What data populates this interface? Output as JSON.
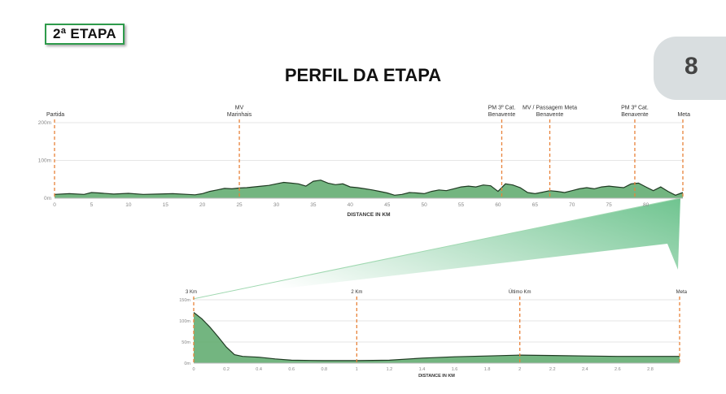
{
  "badge": "2ª ETAPA",
  "page_number": "8",
  "title": "PERFIL DA ETAPA",
  "colors": {
    "fill": "#5aa86a",
    "line": "#1f3a22",
    "marker": "#e8823a",
    "badge_border": "#2e9b4b"
  },
  "chart_data": [
    {
      "type": "area",
      "xlabel": "DISTANCE IN KM",
      "ylabel": "",
      "xlim": [
        0,
        85
      ],
      "ylim": [
        0,
        200
      ],
      "xticks": [
        0,
        5,
        10,
        15,
        20,
        25,
        30,
        35,
        40,
        45,
        50,
        55,
        60,
        65,
        70,
        75,
        80
      ],
      "yticks": [
        {
          "v": 0,
          "label": "0m"
        },
        {
          "v": 100,
          "label": "100m"
        },
        {
          "v": 200,
          "label": "200m"
        }
      ],
      "grid": true,
      "markers": [
        {
          "km": 0,
          "lines": [
            "Partida"
          ]
        },
        {
          "km": 25,
          "lines": [
            "MV",
            "Marinhais"
          ]
        },
        {
          "km": 60.5,
          "lines": [
            "PM 3º Cat.",
            "Benavente"
          ]
        },
        {
          "km": 67,
          "lines": [
            "MV / Passagem Meta",
            "Benavente"
          ]
        },
        {
          "km": 78.5,
          "lines": [
            "PM 3º Cat.",
            "Benavente"
          ]
        },
        {
          "km": 85,
          "lines": [
            "Meta"
          ]
        }
      ],
      "x": [
        0,
        2,
        4,
        5,
        6,
        8,
        10,
        12,
        14,
        16,
        18,
        19,
        20,
        21,
        22,
        23,
        24,
        25,
        26,
        28,
        29,
        30,
        31,
        32,
        33,
        34,
        35,
        36,
        37,
        38,
        39,
        40,
        41,
        42,
        43,
        44,
        45,
        46,
        47,
        48,
        49,
        50,
        51,
        52,
        53,
        54,
        55,
        56,
        57,
        58,
        59,
        60,
        61,
        62,
        63,
        64,
        65,
        66,
        67,
        68,
        69,
        70,
        71,
        72,
        73,
        74,
        75,
        76,
        77,
        78,
        79,
        80,
        81,
        82,
        83,
        84,
        85
      ],
      "y": [
        10,
        12,
        10,
        15,
        14,
        11,
        13,
        10,
        11,
        12,
        10,
        9,
        12,
        18,
        22,
        26,
        25,
        27,
        28,
        32,
        34,
        38,
        42,
        40,
        38,
        32,
        45,
        48,
        40,
        36,
        38,
        30,
        28,
        25,
        22,
        18,
        14,
        8,
        10,
        15,
        14,
        12,
        18,
        22,
        20,
        25,
        30,
        32,
        30,
        35,
        33,
        18,
        38,
        35,
        28,
        15,
        12,
        16,
        20,
        18,
        15,
        20,
        25,
        28,
        25,
        30,
        32,
        30,
        28,
        38,
        40,
        30,
        20,
        30,
        18,
        8,
        15
      ]
    },
    {
      "type": "area",
      "xlabel": "DISTANCE IN KM",
      "ylabel": "",
      "xlim": [
        0,
        2.98
      ],
      "ylim": [
        0,
        150
      ],
      "xticks": [
        0,
        0.2,
        0.4,
        0.6,
        0.8,
        1,
        1.2,
        1.4,
        1.6,
        1.8,
        2,
        2.2,
        2.4,
        2.6,
        2.8
      ],
      "yticks": [
        {
          "v": 0,
          "label": "0m"
        },
        {
          "v": 50,
          "label": "50m"
        },
        {
          "v": 100,
          "label": "100m"
        },
        {
          "v": 150,
          "label": "150m"
        }
      ],
      "grid": true,
      "markers": [
        {
          "km": 0,
          "lines": [
            "3 Km"
          ]
        },
        {
          "km": 1,
          "lines": [
            "2 Km"
          ]
        },
        {
          "km": 2,
          "lines": [
            "Último Km"
          ]
        },
        {
          "km": 2.98,
          "lines": [
            "Meta"
          ]
        }
      ],
      "x": [
        0,
        0.05,
        0.1,
        0.15,
        0.2,
        0.25,
        0.3,
        0.4,
        0.5,
        0.6,
        0.8,
        1.0,
        1.2,
        1.4,
        1.6,
        1.8,
        2.0,
        2.2,
        2.4,
        2.6,
        2.8,
        2.98
      ],
      "y": [
        120,
        105,
        85,
        62,
        38,
        20,
        16,
        14,
        10,
        7,
        6,
        6,
        7,
        12,
        15,
        17,
        19,
        18,
        17,
        16,
        16,
        16
      ]
    }
  ]
}
